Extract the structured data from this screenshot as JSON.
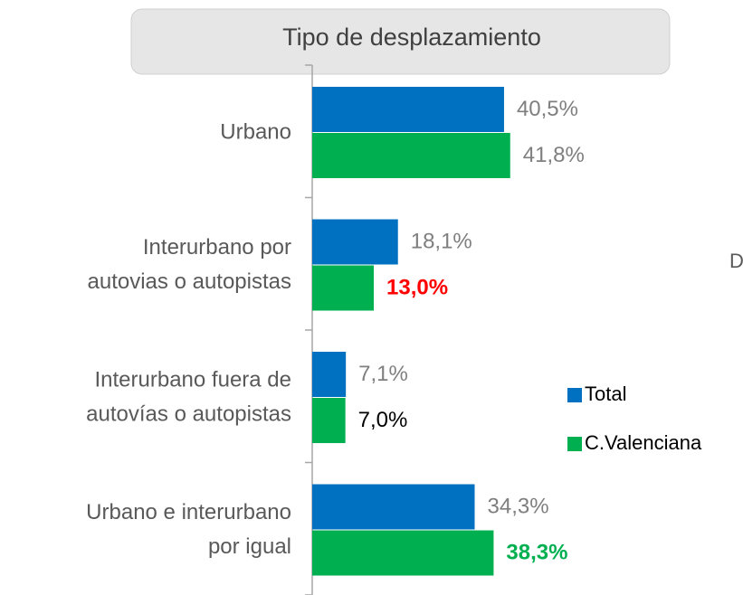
{
  "chart_data": {
    "type": "hbar",
    "title": "Tipo de desplazamiento",
    "annotation": "D",
    "categories": [
      [
        "Urbano"
      ],
      [
        "Interurbano por",
        "autovias o autopistas"
      ],
      [
        "Interurbano fuera de",
        "autovías o autopistas"
      ],
      [
        "Urbano e interurbano",
        "por igual"
      ]
    ],
    "xlim": [
      0,
      90
    ],
    "legend": "right",
    "series": [
      {
        "name": "Total",
        "color": "#0070c0",
        "values": [
          40.5,
          18.1,
          7.1,
          34.3
        ],
        "value_labels": [
          "40,5%",
          "18,1%",
          "7,1%",
          "34,3%"
        ],
        "label_colors": [
          "#7f7f7f",
          "#7f7f7f",
          "#7f7f7f",
          "#7f7f7f"
        ],
        "label_bold": [
          false,
          false,
          false,
          false
        ]
      },
      {
        "name": "C.Valenciana",
        "color": "#00b050",
        "values": [
          41.8,
          13.0,
          7.0,
          38.3
        ],
        "value_labels": [
          "41,8%",
          "13,0%",
          "7,0%",
          "38,3%"
        ],
        "label_colors": [
          "#7f7f7f",
          "#ff0000",
          "#000000",
          "#00b050"
        ],
        "label_bold": [
          false,
          true,
          false,
          true
        ]
      }
    ]
  }
}
